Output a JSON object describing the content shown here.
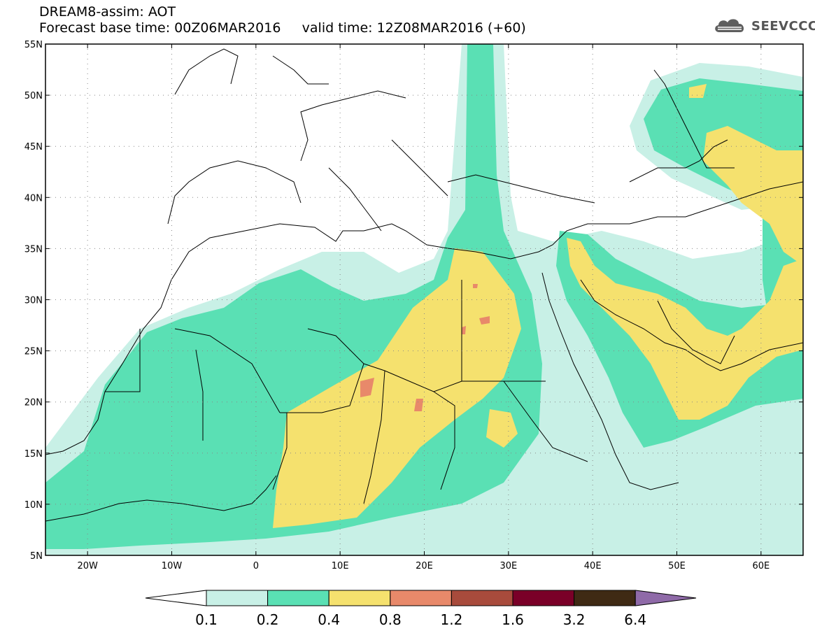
{
  "header": {
    "title": "DREAM8-assim: AOT",
    "base_time_label": "Forecast base time: 00Z06MAR2016",
    "valid_time_label": "valid time: 12Z08MAR2016 (+60)"
  },
  "logo": {
    "text": "SEEVCCC",
    "icon": "cloud-icon"
  },
  "map": {
    "lon_range": [
      -25,
      65
    ],
    "lat_range": [
      5,
      55
    ],
    "lon_ticks": [
      {
        "value": -20,
        "label": "20W"
      },
      {
        "value": -10,
        "label": "10W"
      },
      {
        "value": 0,
        "label": "0"
      },
      {
        "value": 10,
        "label": "10E"
      },
      {
        "value": 20,
        "label": "20E"
      },
      {
        "value": 30,
        "label": "30E"
      },
      {
        "value": 40,
        "label": "40E"
      },
      {
        "value": 50,
        "label": "50E"
      },
      {
        "value": 60,
        "label": "60E"
      }
    ],
    "lat_ticks": [
      {
        "value": 5,
        "label": "5N"
      },
      {
        "value": 10,
        "label": "10N"
      },
      {
        "value": 15,
        "label": "15N"
      },
      {
        "value": 20,
        "label": "20N"
      },
      {
        "value": 25,
        "label": "25N"
      },
      {
        "value": 30,
        "label": "30N"
      },
      {
        "value": 35,
        "label": "35N"
      },
      {
        "value": 40,
        "label": "40N"
      },
      {
        "value": 45,
        "label": "45N"
      },
      {
        "value": 50,
        "label": "50N"
      },
      {
        "value": 55,
        "label": "55N"
      }
    ],
    "gridlines": "dotted"
  },
  "colorbar": {
    "labels": [
      "0.1",
      "0.2",
      "0.4",
      "0.8",
      "1.2",
      "1.6",
      "3.2",
      "6.4"
    ],
    "colors": [
      "#ffffff",
      "#c8f0e6",
      "#5ae0b4",
      "#f5e16e",
      "#e8896a",
      "#a84b3c",
      "#7a0028",
      "#3f2a14",
      "#8f6aa8"
    ]
  }
}
